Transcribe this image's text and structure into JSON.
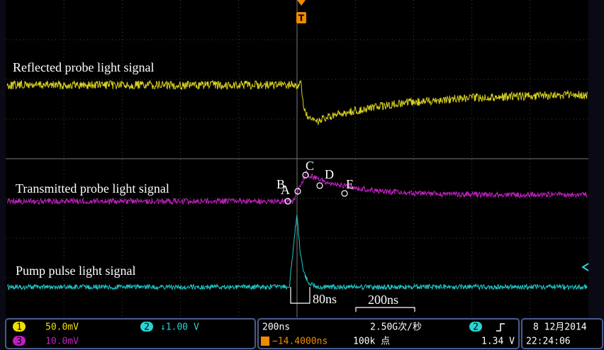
{
  "screen": {
    "trigger_marker": "T",
    "traces": [
      {
        "label": "Reflected probe light signal"
      },
      {
        "label": "Transmitted probe light signal"
      },
      {
        "label": "Pump  pulse light signal"
      }
    ],
    "points": [
      "A",
      "B",
      "C",
      "D",
      "E"
    ],
    "annotations": {
      "pulse_width": "80ns",
      "scale_bar": "200ns"
    }
  },
  "status_bar": {
    "ch1": {
      "number": "1",
      "scale": "50.0mV"
    },
    "ch3": {
      "number": "3",
      "scale": "10.0mV"
    },
    "ch2": {
      "number": "2",
      "scale": "↓1.00 V"
    },
    "timebase": "200ns",
    "sample_rate": "2.50G次/秒",
    "trigger_offset": "−14.4000ns",
    "record_length": "100k 点",
    "trigger_source": "2",
    "trigger_level": "1.34 V",
    "date": "8 12月2014",
    "time": "22:24:06"
  }
}
